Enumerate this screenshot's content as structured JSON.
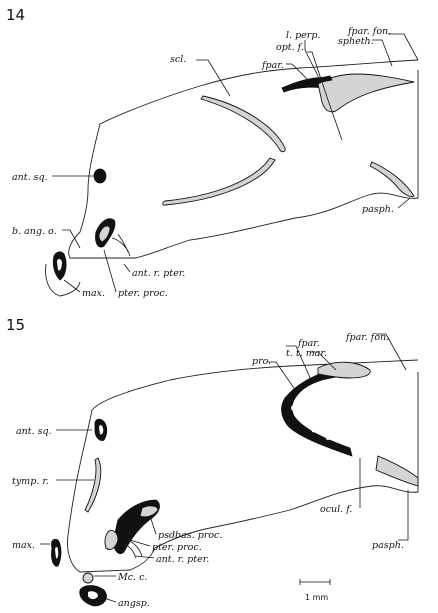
{
  "figure14": {
    "number": "14",
    "labels": {
      "l_perp": "l. perp.",
      "opt_f": "opt. f.",
      "spheth": "spheth.",
      "fpar_fon": "fpar. fon.",
      "scl": "scl.",
      "fpar": "fpar.",
      "ant_sq": "ant. sq.",
      "pasph": "pasph.",
      "b_ang_o": "b. ang. o.",
      "ant_r_pter": "ant. r. pter.",
      "max": "max.",
      "pter_proc": "pter. proc."
    }
  },
  "figure15": {
    "number": "15",
    "labels": {
      "fpar_fon": "fpar. fon.",
      "t_t_mar": "t. t. mar.",
      "pro": "pro.",
      "fpar": "fpar.",
      "ant_sq": "ant. sq.",
      "tymp_r": "tymp. r.",
      "ocul_f": "ocul. f.",
      "max": "max.",
      "psdbas_proc": "psdbas. proc.",
      "pter_proc": "pter. proc.",
      "ant_r_pter": "ant. r. pter.",
      "pasph": "pasph.",
      "mc_c": "Mc. c.",
      "angsp": "angsp."
    }
  },
  "scale_bar": {
    "label": "1 mm"
  },
  "colors": {
    "ink": "#111111",
    "stipple": "#d4d4d4",
    "paper": "#ffffff"
  }
}
